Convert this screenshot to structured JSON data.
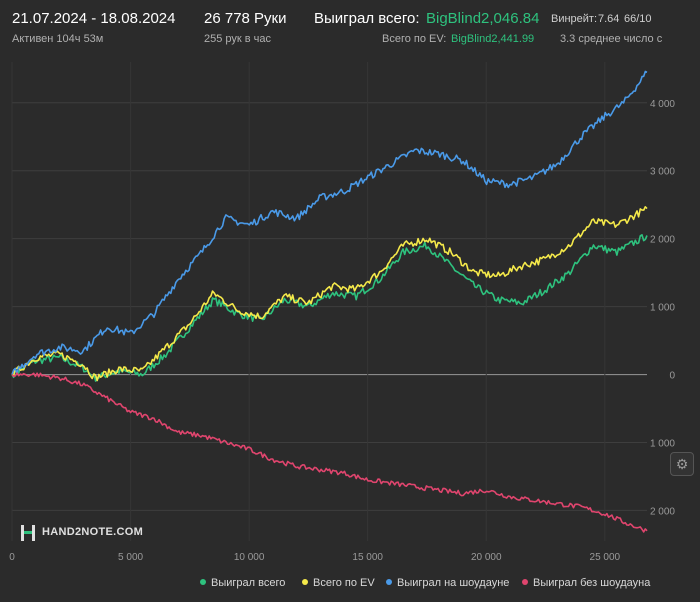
{
  "header": {
    "date_range": "21.07.2024 - 18.08.2024",
    "active_time": "Активен 104ч 53м",
    "hands": "26 778 Руки",
    "hands_per_hour": "255 рук в час",
    "won_total_label": "Выиграл всего:",
    "won_total_value": "BigBlind2,046.84",
    "ev_total_label": "Всего по EV:",
    "ev_total_value": "BigBlind2,441.99",
    "winrate_label": "Винрейт:",
    "winrate_value": "7.64",
    "winrate_extra": "66/10",
    "avg_line": "3.3 среднее число с"
  },
  "logo_text": "HAND2NOTE.COM",
  "colors": {
    "won": "#2ec27e",
    "ev": "#f5e94a",
    "showdown": "#4a9ae8",
    "non_showdown": "#e0456e",
    "accent_green": "#2ec27e"
  },
  "icons": {
    "settings": "gear-icon",
    "logo": "hand2note-logo-icon"
  },
  "legend": [
    {
      "label": "Выиграл всего",
      "color": "#2ec27e"
    },
    {
      "label": "Всего по EV",
      "color": "#f5e94a"
    },
    {
      "label": "Выиграл на шоудауне",
      "color": "#4a9ae8"
    },
    {
      "label": "Выиграл без шоудауна",
      "color": "#e0456e"
    }
  ],
  "chart_data": {
    "type": "line",
    "x_ticks": [
      0,
      5000,
      10000,
      15000,
      20000,
      25000
    ],
    "x_tick_labels": [
      "0",
      "5 000",
      "10 000",
      "15 000",
      "20 000",
      "25 000"
    ],
    "y_ticks": [
      4000,
      3000,
      2000,
      1000,
      0,
      -1000,
      -2000
    ],
    "y_tick_labels": [
      "4 000",
      "3 000",
      "2 000",
      "1 000",
      "0",
      "1 000",
      "2 000"
    ],
    "xlim": [
      0,
      26778
    ],
    "ylim": [
      -2450,
      4600
    ],
    "grid": true,
    "legend_position": "bottom",
    "series": [
      {
        "name": "Выиграл всего",
        "color": "#2ec27e",
        "points": [
          [
            0,
            0
          ],
          [
            1000,
            200
          ],
          [
            2000,
            250
          ],
          [
            3000,
            100
          ],
          [
            3500,
            -50
          ],
          [
            4500,
            50
          ],
          [
            5500,
            0
          ],
          [
            6500,
            300
          ],
          [
            7500,
            700
          ],
          [
            8500,
            1100
          ],
          [
            9500,
            900
          ],
          [
            10500,
            800
          ],
          [
            11500,
            1100
          ],
          [
            12500,
            1000
          ],
          [
            13500,
            1200
          ],
          [
            14500,
            1150
          ],
          [
            15500,
            1400
          ],
          [
            16500,
            1800
          ],
          [
            17500,
            1900
          ],
          [
            18500,
            1600
          ],
          [
            19500,
            1300
          ],
          [
            20500,
            1100
          ],
          [
            21500,
            1050
          ],
          [
            22500,
            1250
          ],
          [
            23500,
            1500
          ],
          [
            24500,
            1900
          ],
          [
            25500,
            1800
          ],
          [
            26778,
            2047
          ]
        ]
      },
      {
        "name": "Всего по EV",
        "color": "#f5e94a",
        "points": [
          [
            0,
            0
          ],
          [
            1000,
            250
          ],
          [
            2000,
            300
          ],
          [
            3000,
            150
          ],
          [
            3500,
            -50
          ],
          [
            4500,
            80
          ],
          [
            5500,
            50
          ],
          [
            6500,
            400
          ],
          [
            7500,
            750
          ],
          [
            8500,
            1200
          ],
          [
            9500,
            950
          ],
          [
            10500,
            850
          ],
          [
            11500,
            1150
          ],
          [
            12500,
            1050
          ],
          [
            13500,
            1300
          ],
          [
            14500,
            1250
          ],
          [
            15500,
            1500
          ],
          [
            16500,
            1900
          ],
          [
            17500,
            2000
          ],
          [
            18500,
            1800
          ],
          [
            19500,
            1500
          ],
          [
            20500,
            1450
          ],
          [
            21500,
            1600
          ],
          [
            22500,
            1700
          ],
          [
            23500,
            1900
          ],
          [
            24500,
            2250
          ],
          [
            25500,
            2200
          ],
          [
            26778,
            2442
          ]
        ]
      },
      {
        "name": "Выиграл на шоудауне",
        "color": "#4a9ae8",
        "points": [
          [
            0,
            0
          ],
          [
            1000,
            300
          ],
          [
            2000,
            400
          ],
          [
            3000,
            350
          ],
          [
            4000,
            700
          ],
          [
            5000,
            600
          ],
          [
            6000,
            900
          ],
          [
            7000,
            1400
          ],
          [
            8000,
            1800
          ],
          [
            9000,
            2300
          ],
          [
            10000,
            2200
          ],
          [
            11000,
            2400
          ],
          [
            12000,
            2300
          ],
          [
            13000,
            2600
          ],
          [
            14000,
            2700
          ],
          [
            15000,
            2900
          ],
          [
            16000,
            3100
          ],
          [
            17000,
            3300
          ],
          [
            18000,
            3250
          ],
          [
            19000,
            3150
          ],
          [
            20000,
            2850
          ],
          [
            21000,
            2800
          ],
          [
            22000,
            2900
          ],
          [
            23000,
            3100
          ],
          [
            24000,
            3500
          ],
          [
            25000,
            3800
          ],
          [
            25800,
            4000
          ],
          [
            26778,
            4450
          ]
        ]
      },
      {
        "name": "Выиграл без шоудауна",
        "color": "#e0456e",
        "points": [
          [
            0,
            0
          ],
          [
            1000,
            0
          ],
          [
            2000,
            -50
          ],
          [
            3000,
            -150
          ],
          [
            4000,
            -350
          ],
          [
            5000,
            -550
          ],
          [
            6000,
            -650
          ],
          [
            7000,
            -850
          ],
          [
            8000,
            -900
          ],
          [
            9000,
            -1000
          ],
          [
            10000,
            -1100
          ],
          [
            11000,
            -1250
          ],
          [
            12000,
            -1350
          ],
          [
            13000,
            -1400
          ],
          [
            14000,
            -1450
          ],
          [
            15000,
            -1550
          ],
          [
            16000,
            -1600
          ],
          [
            17000,
            -1650
          ],
          [
            18000,
            -1700
          ],
          [
            19000,
            -1750
          ],
          [
            20000,
            -1700
          ],
          [
            21000,
            -1800
          ],
          [
            22000,
            -1850
          ],
          [
            23000,
            -1900
          ],
          [
            24000,
            -1950
          ],
          [
            25000,
            -2050
          ],
          [
            26000,
            -2200
          ],
          [
            26778,
            -2300
          ]
        ]
      }
    ]
  }
}
